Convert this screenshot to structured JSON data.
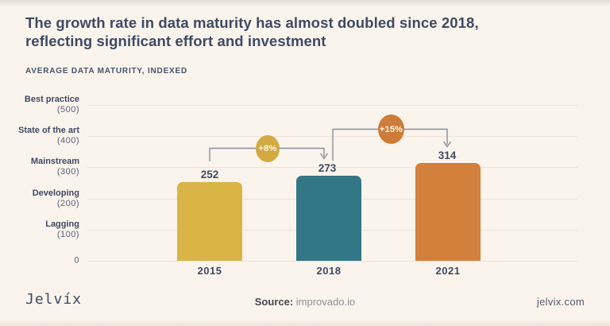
{
  "header": {
    "title_line1": "The growth rate in data maturity has almost doubled since 2018,",
    "title_line2": "reflecting significant effort and investment",
    "subtitle": "AVERAGE DATA MATURITY, INDEXED"
  },
  "chart_data": {
    "type": "bar",
    "title": "AVERAGE DATA MATURITY, INDEXED",
    "categories": [
      "2015",
      "2018",
      "2021"
    ],
    "values": [
      252,
      273,
      314
    ],
    "bar_colors": [
      "#d9b548",
      "#337686",
      "#d2803c"
    ],
    "ylim": [
      0,
      500
    ],
    "grid": true,
    "legend": "none",
    "yaxis_labels": [
      {
        "name": "Best practice",
        "value": "(500)",
        "y": 500
      },
      {
        "name": "State of the art",
        "value": "(400)",
        "y": 400
      },
      {
        "name": "Mainstream",
        "value": "(300)",
        "y": 300
      },
      {
        "name": "Developing",
        "value": "(200)",
        "y": 200
      },
      {
        "name": "Lagging",
        "value": "(100)",
        "y": 100
      },
      {
        "name": "0",
        "value": "",
        "y": 0
      }
    ],
    "annotations": [
      {
        "label": "+8%",
        "from": "2015",
        "to": "2018",
        "color": "#d3aa40"
      },
      {
        "label": "+15%",
        "from": "2018",
        "to": "2021",
        "color": "#cf7c38"
      }
    ]
  },
  "footer": {
    "logo": "Jelvíx",
    "source_label": "Source:",
    "source_value": " improvado.io",
    "website": "jelvix.com"
  },
  "colors": {
    "background": "#fbf4ed",
    "title": "#3e4a63",
    "connector_line": "#8a8f9c",
    "grid": "#ebe2d9",
    "badge_text": "#fdf9f3"
  }
}
